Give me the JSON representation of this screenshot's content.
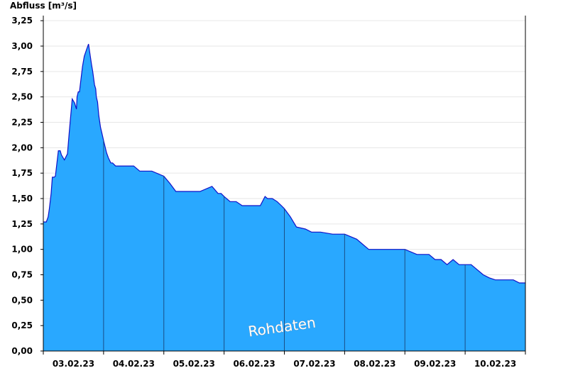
{
  "chart_data": {
    "type": "area",
    "ylabel": "Abfluss [m³/s]",
    "watermark": "Rohdaten",
    "y_ticks": [
      "0,00",
      "0,25",
      "0,50",
      "0,75",
      "1,00",
      "1,25",
      "1,50",
      "1,75",
      "2,00",
      "2,25",
      "2,50",
      "2,75",
      "3,00",
      "3,25"
    ],
    "ylim": [
      0,
      3.3
    ],
    "x_ticks": [
      "03.02.23",
      "04.02.23",
      "05.02.23",
      "06.02.23",
      "07.02.23",
      "08.02.23",
      "09.02.23",
      "10.02.23"
    ],
    "xlim_days": [
      0,
      8
    ],
    "grid": true,
    "fill_color": "#29a8ff",
    "line_color": "#1010c8",
    "series": [
      {
        "x_days": [
          0.0,
          0.05,
          0.08,
          0.1,
          0.13,
          0.15,
          0.18,
          0.2,
          0.25,
          0.28,
          0.3,
          0.35,
          0.4,
          0.43,
          0.48,
          0.52,
          0.55,
          0.56,
          0.58,
          0.6,
          0.62,
          0.65,
          0.68,
          0.72,
          0.75,
          0.78,
          0.8,
          0.82,
          0.85,
          0.87,
          0.88,
          0.9,
          0.92,
          0.95,
          0.97,
          1.0,
          1.05,
          1.08,
          1.12,
          1.15,
          1.2,
          1.25,
          1.28,
          1.32,
          1.35,
          1.4,
          1.45,
          1.5,
          1.6,
          1.8,
          2.0,
          2.1,
          2.2,
          2.4,
          2.6,
          2.8,
          2.9,
          2.95,
          3.0,
          3.1,
          3.2,
          3.3,
          3.4,
          3.5,
          3.55,
          3.6,
          3.68,
          3.72,
          3.8,
          3.88,
          3.95,
          4.0,
          4.1,
          4.2,
          4.35,
          4.45,
          4.6,
          4.8,
          5.0,
          5.2,
          5.4,
          5.6,
          5.7,
          5.8,
          6.0,
          6.2,
          6.3,
          6.4,
          6.5,
          6.6,
          6.7,
          6.8,
          6.9,
          7.0,
          7.1,
          7.2,
          7.3,
          7.4,
          7.5,
          7.6,
          7.7,
          7.8,
          7.9,
          8.0
        ],
        "y": [
          1.27,
          1.27,
          1.32,
          1.4,
          1.55,
          1.71,
          1.71,
          1.72,
          1.97,
          1.97,
          1.93,
          1.88,
          1.94,
          2.15,
          2.48,
          2.44,
          2.38,
          2.5,
          2.55,
          2.55,
          2.65,
          2.8,
          2.9,
          2.97,
          3.02,
          2.9,
          2.82,
          2.75,
          2.62,
          2.58,
          2.5,
          2.45,
          2.32,
          2.2,
          2.15,
          2.07,
          1.95,
          1.9,
          1.85,
          1.85,
          1.82,
          1.82,
          1.82,
          1.82,
          1.82,
          1.82,
          1.82,
          1.82,
          1.77,
          1.77,
          1.72,
          1.65,
          1.57,
          1.57,
          1.57,
          1.62,
          1.55,
          1.55,
          1.52,
          1.47,
          1.47,
          1.43,
          1.43,
          1.43,
          1.43,
          1.43,
          1.52,
          1.5,
          1.5,
          1.47,
          1.43,
          1.4,
          1.32,
          1.22,
          1.2,
          1.17,
          1.17,
          1.15,
          1.15,
          1.1,
          1.0,
          1.0,
          1.0,
          1.0,
          1.0,
          0.95,
          0.95,
          0.95,
          0.9,
          0.9,
          0.85,
          0.9,
          0.85,
          0.85,
          0.85,
          0.8,
          0.75,
          0.72,
          0.7,
          0.7,
          0.7,
          0.7,
          0.67,
          0.67
        ]
      }
    ]
  }
}
